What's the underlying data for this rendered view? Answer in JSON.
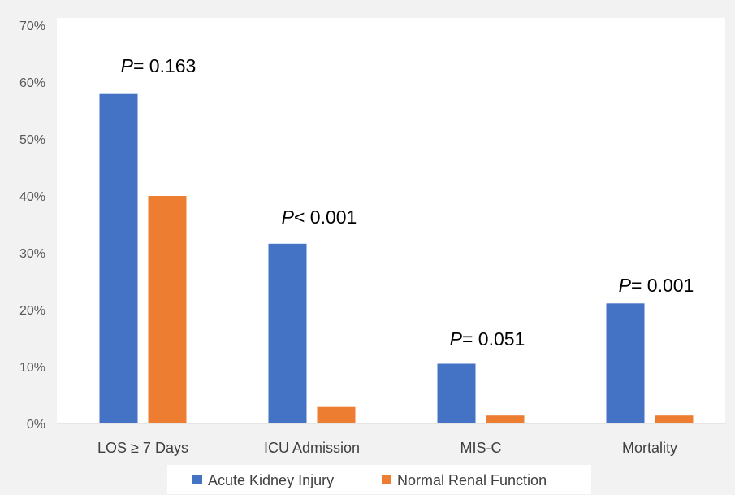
{
  "chart_data": {
    "type": "bar",
    "categories": [
      "LOS ≥ 7 Days",
      "ICU Admission",
      "MIS-C",
      "Mortality"
    ],
    "series": [
      {
        "name": "Acute Kidney Injury",
        "values": [
          57.9,
          31.6,
          10.5,
          21.1
        ],
        "color": "#4472c4"
      },
      {
        "name": "Normal Renal Function",
        "values": [
          40.0,
          2.9,
          1.4,
          1.4
        ],
        "color": "#ed7d31"
      }
    ],
    "ylim": [
      0,
      70
    ],
    "yticks": [
      0,
      10,
      20,
      30,
      40,
      50,
      60,
      70
    ],
    "ytick_labels": [
      "0%",
      "10%",
      "20%",
      "30%",
      "40%",
      "50%",
      "60%",
      "70%"
    ],
    "grid": false,
    "legend_position": "bottom",
    "annotations": [
      {
        "category": "LOS ≥ 7 Days",
        "p_symbol": "P",
        "p_text": "= 0.163"
      },
      {
        "category": "ICU Admission",
        "p_symbol": "P",
        "p_text": "< 0.001"
      },
      {
        "category": "MIS-C",
        "p_symbol": "P",
        "p_text": "= 0.051"
      },
      {
        "category": "Mortality",
        "p_symbol": "P",
        "p_text": "= 0.001"
      }
    ],
    "title": "",
    "xlabel": "",
    "ylabel": ""
  }
}
